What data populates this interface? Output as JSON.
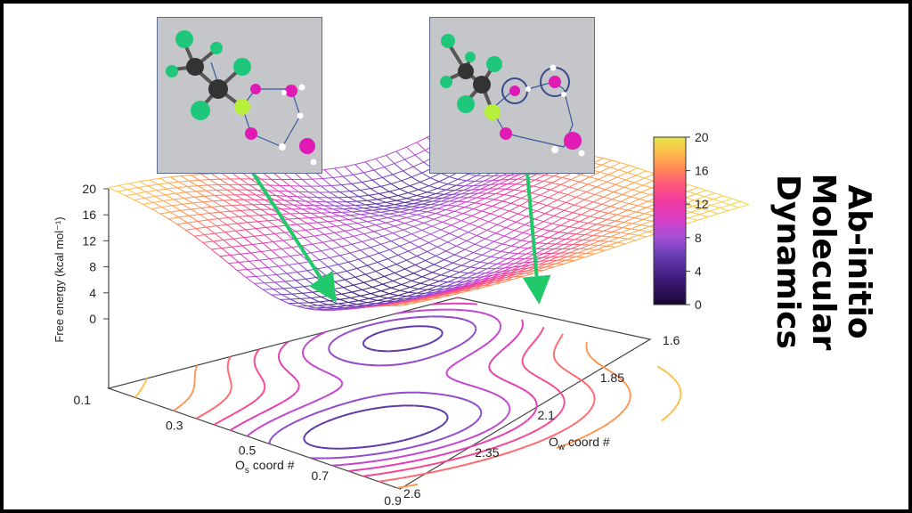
{
  "slide_title_line1": "Ab-initio Molecular",
  "slide_title_line2": "Dynamics",
  "colors": {
    "colormap": [
      "#1a0833",
      "#3d1a78",
      "#6a3fb5",
      "#a24fd6",
      "#d63fc8",
      "#f03aa0",
      "#ff5a7a",
      "#ff8c55",
      "#ffb84a",
      "#e6e84a"
    ],
    "arrow": "#22c96a",
    "inset_border": "#5a6a8c",
    "inset_bg": "#c4c6c9"
  },
  "chart_data": {
    "type": "surface",
    "zlabel": "Free energy (kcal mol⁻¹)",
    "z_ticks": [
      "20",
      "16",
      "12",
      "8",
      "4",
      "0"
    ],
    "x_axis": {
      "label_main": "O",
      "label_sub": "s",
      "label_rest": " coord #",
      "ticks": [
        "0.1",
        "0.3",
        "0.5",
        "0.7",
        "0.9"
      ]
    },
    "y_axis": {
      "label_main": "O",
      "label_sub": "w",
      "label_rest": " coord #",
      "ticks": [
        "1.6",
        "1.85",
        "2.1",
        "2.35",
        "2.6"
      ]
    },
    "colorbar": {
      "ticks": [
        "20",
        "16",
        "12",
        "8",
        "4",
        "0"
      ],
      "range": [
        0,
        20
      ]
    },
    "zlim": [
      0,
      20
    ],
    "minima": [
      {
        "os": 0.6,
        "ow": 2.35,
        "free_energy": 2
      },
      {
        "os": 0.2,
        "ow": 1.85,
        "free_energy": 0
      }
    ],
    "contour_levels": [
      0,
      2,
      4,
      6,
      8,
      10,
      12,
      14,
      16,
      18,
      20
    ]
  }
}
